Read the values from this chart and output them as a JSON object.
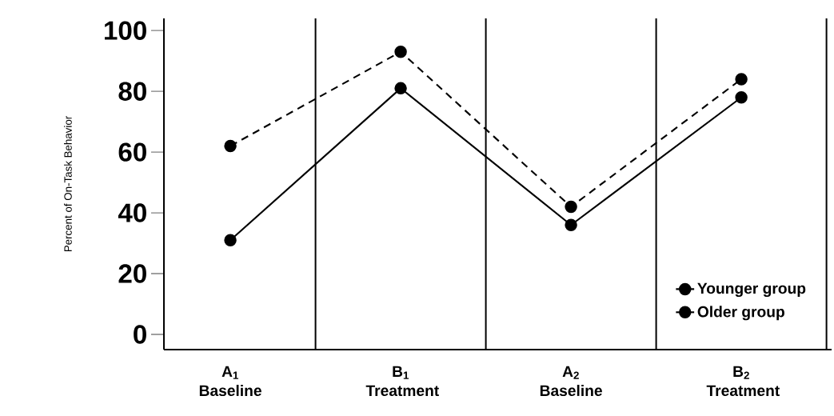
{
  "chart_data": {
    "type": "line",
    "ylabel": "Percent of On-Task Behavior",
    "categories": [
      "A$_{1}$ Baseline",
      "B$_{1}$ Treatment",
      "A$_{2}$ Baseline",
      "B$_{2}$ Treatment"
    ],
    "series": [
      {
        "name": "Younger group",
        "color": "#000000",
        "line_style": "dashed",
        "values": [
          62,
          93,
          42,
          84
        ]
      },
      {
        "name": "Older group",
        "color": "#000000",
        "line_style": "solid",
        "values": [
          31,
          81,
          36,
          78
        ]
      }
    ],
    "ylim": [
      -5,
      104
    ],
    "yticks": [
      0,
      20,
      40,
      60,
      80,
      100
    ],
    "marker": "circle",
    "legend": "bottom right",
    "grid": false
  }
}
